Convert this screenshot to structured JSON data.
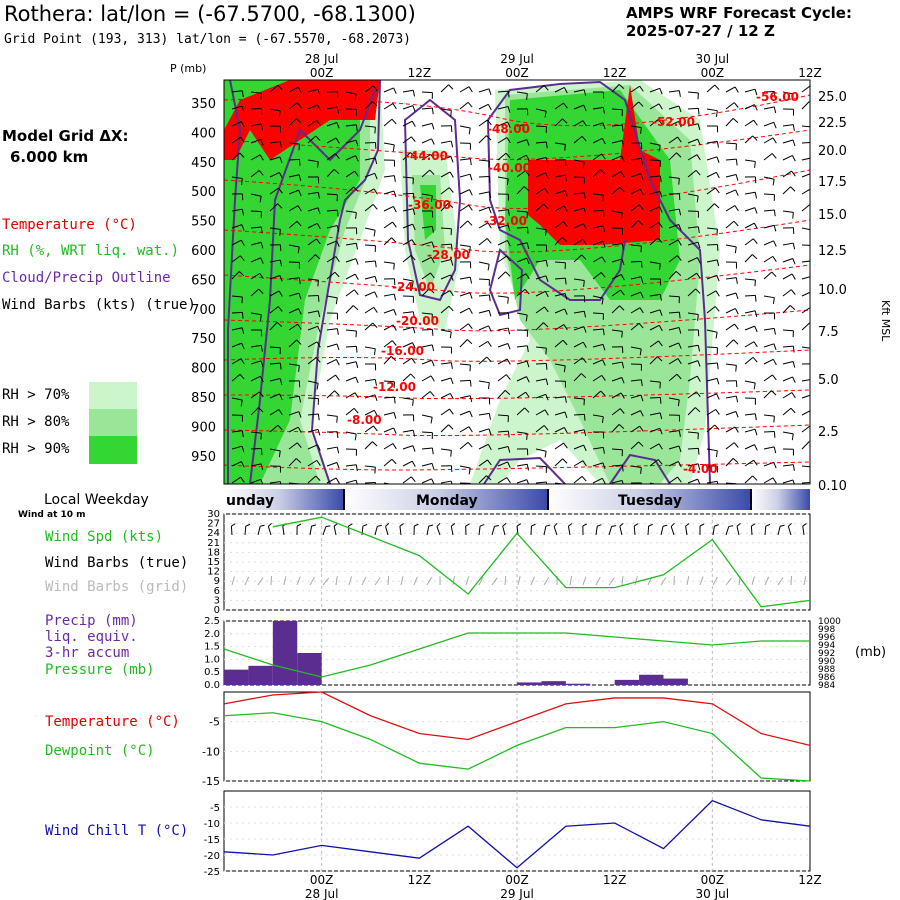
{
  "header": {
    "station": "Rothera:",
    "latlon": "lat/lon = (-67.5700, -68.1300)",
    "grid": "Grid Point (193, 313) lat/lon = (-67.5570, -68.2073)",
    "cycle_title": "AMPS WRF Forecast Cycle:",
    "cycle": "2025-07-27 / 12  Z"
  },
  "left_legend": {
    "model_grid_label": "Model Grid ΔX:",
    "model_grid_value": "6.000 km",
    "temperature": "Temperature (°C)",
    "rh": "RH (%, WRT liq. wat.)",
    "cloud": "Cloud/Precip Outline",
    "wind": "Wind Barbs (kts) (true)",
    "rh70": "RH > 70%",
    "rh80": "RH > 80%",
    "rh90": "RH > 90%"
  },
  "colors": {
    "rh70": "#ccf5cc",
    "rh80": "#99e699",
    "rh90": "#33d633",
    "temp": "#ff0000",
    "cloud": "#5b2d91",
    "dewpoint": "#22bb22",
    "windchill": "#1111aa",
    "precip": "#5b2d91",
    "weekday_band": "#3a4aa8"
  },
  "time_axis": {
    "top_ticks": [
      "00Z",
      "12Z",
      "00Z",
      "12Z",
      "00Z",
      "12Z"
    ],
    "top_dates": [
      "28 Jul",
      "29 Jul",
      "30 Jul"
    ],
    "bottom_ticks": [
      "00Z",
      "12Z",
      "00Z",
      "12Z",
      "00Z",
      "12Z"
    ],
    "bottom_dates": [
      "28 Jul",
      "29 Jul",
      "30 Jul"
    ]
  },
  "weekday": {
    "title": "Local Weekday",
    "days": [
      "unday",
      "Monday",
      "Tuesday"
    ]
  },
  "surface_panel": {
    "sub": "Wind at 10 m",
    "l1": "Wind Spd (kts)",
    "l2": "Wind Barbs (true)",
    "l3": "Wind Barbs (grid)"
  },
  "precip_panel": {
    "l1": "Precip (mm)",
    "l2": "liq. equiv.",
    "l3": "3-hr accum",
    "l4": "Pressure (mb)",
    "right_unit": "(mb)"
  },
  "temp_panel": {
    "l1": "Temperature (°C)",
    "l2": "Dewpoint (°C)"
  },
  "chill_panel": {
    "l1": "Wind Chill T (°C)"
  },
  "chart_data": [
    {
      "type": "heatmap",
      "title": "Time-height cross section",
      "ylabel": "P (mb)",
      "y2label": "Kft MSL",
      "p_ticks": [
        "350",
        "400",
        "450",
        "500",
        "550",
        "600",
        "650",
        "700",
        "750",
        "800",
        "850",
        "900",
        "950"
      ],
      "kft_ticks": [
        "25.0",
        "22.5",
        "20.0",
        "17.5",
        "15.0",
        "12.5",
        "10.0",
        "7.5",
        "5.0",
        "2.5",
        "0.10"
      ],
      "temp_contour_labels": [
        "-56.00",
        "-52.00",
        "-48.00",
        "-44.00",
        "-40.00",
        "-36.00",
        "-32.00",
        "-28.00",
        "-24.00",
        "-20.00",
        "-16.00",
        "-12.00",
        "-8.00",
        "-4.00"
      ]
    },
    {
      "type": "line",
      "name": "Wind Spd (kts)",
      "x_hours": [
        -6,
        0,
        6,
        12,
        18,
        24,
        30,
        36,
        42,
        48,
        54,
        60
      ],
      "ylim": [
        0,
        30
      ],
      "yticks": [
        "30",
        "27",
        "24",
        "21",
        "18",
        "15",
        "12",
        "9",
        "6",
        "3",
        "0"
      ],
      "values": [
        26,
        29,
        23,
        17,
        5,
        24,
        7,
        7,
        11,
        22,
        1,
        3
      ],
      "xlim": [
        -12,
        60
      ]
    },
    {
      "type": "bar",
      "name": "Precip 3-hr accum (mm)",
      "yticks": [
        "2.5",
        "2.0",
        "1.5",
        "1.0",
        "0.5",
        "0.0"
      ],
      "ylim": [
        0,
        2.5
      ],
      "bars": [
        {
          "x": -12,
          "w": 3,
          "v": 0.6
        },
        {
          "x": -9,
          "w": 3,
          "v": 0.75
        },
        {
          "x": -6,
          "w": 3,
          "v": 2.5
        },
        {
          "x": -3,
          "w": 3,
          "v": 1.25
        },
        {
          "x": 0,
          "w": 3,
          "v": 0.0
        },
        {
          "x": 24,
          "w": 3,
          "v": 0.1
        },
        {
          "x": 27,
          "w": 3,
          "v": 0.15
        },
        {
          "x": 30,
          "w": 3,
          "v": 0.05
        },
        {
          "x": 36,
          "w": 3,
          "v": 0.2
        },
        {
          "x": 39,
          "w": 3,
          "v": 0.4
        },
        {
          "x": 42,
          "w": 3,
          "v": 0.25
        }
      ],
      "pressure_ticks": [
        "1000",
        "998",
        "996",
        "994",
        "992",
        "990",
        "988",
        "986",
        "984"
      ],
      "pressure_lim": [
        984,
        1000
      ],
      "pressure_x": [
        -12,
        -6,
        0,
        6,
        12,
        18,
        24,
        30,
        36,
        42,
        48,
        54,
        60
      ],
      "pressure": [
        993,
        989,
        986,
        989,
        993,
        997,
        997,
        997,
        996,
        995,
        994,
        995,
        995
      ]
    },
    {
      "type": "line",
      "name": "Temperature / Dewpoint (°C)",
      "yticks": [
        "-5",
        "-10",
        "-15"
      ],
      "ylim": [
        -15,
        0
      ],
      "x_hours": [
        -12,
        -6,
        0,
        6,
        12,
        18,
        24,
        30,
        36,
        42,
        48,
        54,
        60
      ],
      "temperature": [
        -2,
        -0.5,
        0,
        -4,
        -7,
        -8,
        -5,
        -2,
        -1,
        -1,
        -2,
        -7,
        -9
      ],
      "dewpoint": [
        -4,
        -3.5,
        -5,
        -8,
        -12,
        -13,
        -9,
        -6,
        -6,
        -5,
        -7,
        -14.5,
        -15
      ]
    },
    {
      "type": "line",
      "name": "Wind Chill T (°C)",
      "yticks": [
        "-5",
        "-10",
        "-15",
        "-20",
        "-25"
      ],
      "ylim": [
        -25,
        0
      ],
      "x_hours": [
        -12,
        -6,
        0,
        6,
        12,
        18,
        24,
        30,
        36,
        42,
        48,
        54,
        60
      ],
      "values": [
        -19,
        -20,
        -17,
        -19,
        -21,
        -11,
        -24,
        -11,
        -10,
        -18,
        -3,
        -9,
        -11
      ]
    }
  ]
}
